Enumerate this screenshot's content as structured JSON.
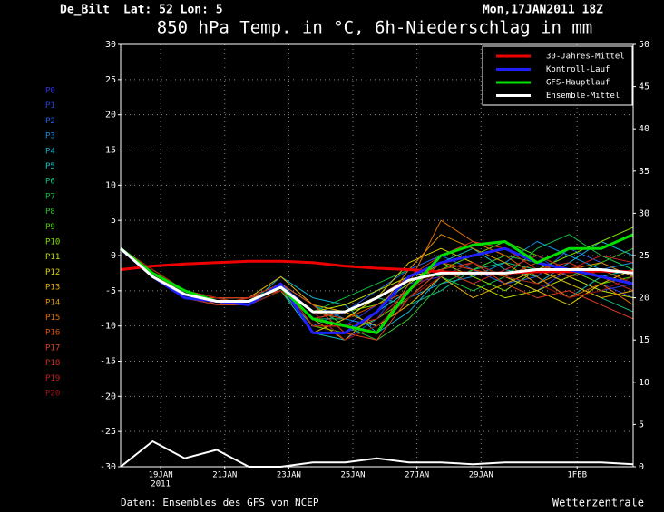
{
  "chart_data": {
    "type": "line",
    "location": "De_Bilt",
    "coords": "Lat: 52 Lon: 5",
    "run_time": "Mon,17JAN2011 18Z",
    "title": "850 hPa Temp. in °C, 6h-Niederschlag in mm",
    "source": "Daten: Ensembles des GFS von NCEP",
    "brand": "Wetterzentrale",
    "grid": true,
    "x": [
      "2011-01-17T18:00",
      "2011-01-18T18:00",
      "2011-01-19T18:00",
      "2011-01-20T18:00",
      "2011-01-21T18:00",
      "2011-01-22T18:00",
      "2011-01-23T18:00",
      "2011-01-24T18:00",
      "2011-01-25T18:00",
      "2011-01-26T18:00",
      "2011-01-27T18:00",
      "2011-01-28T18:00",
      "2011-01-29T18:00",
      "2011-01-30T18:00",
      "2011-01-31T18:00",
      "2011-02-01T18:00",
      "2011-02-02T18:00"
    ],
    "xlim": [
      "2011-01-17T18:00",
      "2011-02-02T18:00"
    ],
    "xticks": [
      {
        "value": "2011-01-19T00:00",
        "label": "19JAN"
      },
      {
        "value": "2011-01-21T00:00",
        "label": "21JAN"
      },
      {
        "value": "2011-01-23T00:00",
        "label": "23JAN"
      },
      {
        "value": "2011-01-25T00:00",
        "label": "25JAN"
      },
      {
        "value": "2011-01-27T00:00",
        "label": "27JAN"
      },
      {
        "value": "2011-01-29T00:00",
        "label": "29JAN"
      },
      {
        "value": "2011-02-01T00:00",
        "label": "1FEB"
      }
    ],
    "xtick_year": "2011",
    "ylim": [
      -30,
      30
    ],
    "yticks": [
      -30,
      -25,
      -20,
      -15,
      -10,
      -5,
      0,
      5,
      10,
      15,
      20,
      25,
      30
    ],
    "y2lim": [
      0,
      50
    ],
    "y2ticks": [
      0,
      5,
      10,
      15,
      20,
      25,
      30,
      35,
      40,
      45,
      50
    ],
    "series": [
      {
        "name": "30-Jahres-Mittel",
        "color": "#ee0000",
        "values": [
          -2,
          -1.5,
          -1.2,
          -1,
          -0.8,
          -0.8,
          -1,
          -1.5,
          -1.8,
          -2,
          -2.3,
          -2.5,
          -2.5,
          -2.3,
          -2.3,
          -2.2,
          -2.3
        ]
      },
      {
        "name": "Kontroll-Lauf",
        "color": "#2020ff",
        "values": [
          1,
          -3,
          -6,
          -6.5,
          -7,
          -4,
          -11,
          -11,
          -8,
          -3,
          -1,
          0,
          1,
          -1,
          -2,
          -3,
          -4
        ]
      },
      {
        "name": "GFS-Hauptlauf",
        "color": "#00e000",
        "values": [
          1,
          -2.5,
          -5,
          -6.5,
          -6.5,
          -4.5,
          -9,
          -10,
          -11,
          -5,
          0,
          1.5,
          2,
          -1,
          1,
          1,
          3
        ]
      },
      {
        "name": "Ensemble-Mittel",
        "color": "#ffffff",
        "values": [
          1,
          -3,
          -5.5,
          -6.5,
          -6.5,
          -4.5,
          -8,
          -8,
          -6,
          -3.5,
          -2.5,
          -2.5,
          -2.5,
          -2,
          -2,
          -2,
          -2.5
        ]
      }
    ],
    "precipitation": {
      "color": "#ffffff",
      "axis": "y2",
      "values": [
        0,
        3,
        1,
        2,
        0,
        0,
        0.5,
        0.5,
        1,
        0.5,
        0.5,
        0.3,
        0.5,
        0.5,
        0.5,
        0.5,
        0.3
      ]
    },
    "members": [
      {
        "name": "P0",
        "color": "#3030e0",
        "values": [
          1,
          -3,
          -5,
          -6,
          -7,
          -5,
          -9,
          -10,
          -7,
          -4,
          -3,
          -1,
          -3,
          -5,
          -2,
          -4,
          -6
        ]
      },
      {
        "name": "P1",
        "color": "#2040e0",
        "values": [
          1,
          -3,
          -6,
          -7,
          -6,
          -4,
          -8,
          -12,
          -9,
          -3,
          -2,
          -4,
          -2,
          0,
          -3,
          -5,
          -4
        ]
      },
      {
        "name": "P2",
        "color": "#2060e0",
        "values": [
          1,
          -2,
          -5,
          -6,
          -6,
          -5,
          -10,
          -8,
          -5,
          -2,
          0,
          -2,
          -4,
          -3,
          1,
          -1,
          -3
        ]
      },
      {
        "name": "P3",
        "color": "#1090e0",
        "values": [
          1,
          -3,
          -5,
          -7,
          -6,
          -4,
          -7,
          -9,
          -10,
          -6,
          -4,
          -3,
          -1,
          2,
          0,
          -2,
          -1
        ]
      },
      {
        "name": "P4",
        "color": "#10b0d0",
        "values": [
          1,
          -3,
          -6,
          -6,
          -7,
          -3,
          -6,
          -7,
          -11,
          -8,
          -3,
          -1,
          -3,
          -4,
          -1,
          2,
          0
        ]
      },
      {
        "name": "P5",
        "color": "#10c0c0",
        "values": [
          1,
          -2,
          -5,
          -6,
          -7,
          -5,
          -11,
          -12,
          -8,
          -5,
          -1,
          1,
          -2,
          -3,
          -6,
          -3,
          -2
        ]
      },
      {
        "name": "P6",
        "color": "#10c080",
        "values": [
          1,
          -3,
          -5,
          -6,
          -6,
          -4,
          -9,
          -9,
          -6,
          -7,
          -5,
          -2,
          -1,
          -2,
          -4,
          -6,
          -8
        ]
      },
      {
        "name": "P7",
        "color": "#10c040",
        "values": [
          1,
          -3,
          -6,
          -7,
          -6,
          -5,
          -8,
          -6,
          -4,
          -2,
          -3,
          -5,
          -3,
          1,
          3,
          0,
          -2
        ]
      },
      {
        "name": "P8",
        "color": "#30c030",
        "values": [
          1,
          -2,
          -5,
          -6,
          -6,
          -4,
          -7,
          -10,
          -12,
          -9,
          -4,
          -2,
          0,
          -1,
          -3,
          -1,
          1
        ]
      },
      {
        "name": "P9",
        "color": "#50d000",
        "values": [
          1,
          -3,
          -5,
          -7,
          -7,
          -5,
          -10,
          -11,
          -9,
          -6,
          -2,
          0,
          2,
          0,
          -2,
          -4,
          -3
        ]
      },
      {
        "name": "P10",
        "color": "#80e000",
        "values": [
          1,
          -3,
          -6,
          -6,
          -6,
          -4,
          -9,
          -8,
          -7,
          -4,
          -1,
          -3,
          -5,
          -2,
          0,
          2,
          4
        ]
      },
      {
        "name": "P11",
        "color": "#c0e000",
        "values": [
          1,
          -2,
          -5,
          -7,
          -6,
          -5,
          -8,
          -7,
          -5,
          -3,
          -2,
          -4,
          -6,
          -5,
          -3,
          -5,
          -6
        ]
      },
      {
        "name": "P12",
        "color": "#e0d000",
        "values": [
          1,
          -3,
          -5,
          -6,
          -7,
          -4,
          -11,
          -9,
          -6,
          -1,
          1,
          -1,
          -3,
          -5,
          -7,
          -4,
          -2
        ]
      },
      {
        "name": "P13",
        "color": "#e0b000",
        "values": [
          1,
          -3,
          -6,
          -7,
          -6,
          -3,
          -7,
          -8,
          -10,
          -7,
          -3,
          -6,
          -4,
          -2,
          -4,
          -6,
          -5
        ]
      },
      {
        "name": "P14",
        "color": "#e09000",
        "values": [
          1,
          -2,
          -5,
          -6,
          -7,
          -5,
          -9,
          -12,
          -8,
          -2,
          3,
          1,
          -1,
          -4,
          -2,
          -1,
          -3
        ]
      },
      {
        "name": "P15",
        "color": "#e07000",
        "values": [
          1,
          -3,
          -5,
          -7,
          -6,
          -4,
          -10,
          -10,
          -11,
          -4,
          5,
          2,
          0,
          -3,
          -6,
          -4,
          -7
        ]
      },
      {
        "name": "P16",
        "color": "#e05000",
        "values": [
          1,
          -3,
          -6,
          -6,
          -6,
          -5,
          -8,
          -9,
          -7,
          -5,
          -1,
          -2,
          -3,
          -1,
          -3,
          -2,
          -4
        ]
      },
      {
        "name": "P17",
        "color": "#e04020",
        "values": [
          1,
          -2,
          -5,
          -7,
          -7,
          -4,
          -7,
          -11,
          -12,
          -6,
          -2,
          -1,
          -4,
          -6,
          -5,
          -7,
          -9
        ]
      },
      {
        "name": "P18",
        "color": "#d03020",
        "values": [
          1,
          -3,
          -5,
          -6,
          -6,
          -5,
          -9,
          -8,
          -6,
          -3,
          0,
          2,
          1,
          -2,
          -1,
          -3,
          -5
        ]
      },
      {
        "name": "P19",
        "color": "#c02020",
        "values": [
          1,
          -3,
          -6,
          -7,
          -6,
          -4,
          -10,
          -10,
          -9,
          -5,
          -2,
          -4,
          -2,
          0,
          -2,
          0,
          -1
        ]
      },
      {
        "name": "P20",
        "color": "#a01010",
        "values": [
          1,
          -2,
          -5,
          -6,
          -7,
          -5,
          -8,
          -12,
          -10,
          -6,
          -3,
          -1,
          -3,
          -4,
          -6,
          -5,
          -3
        ]
      }
    ]
  }
}
